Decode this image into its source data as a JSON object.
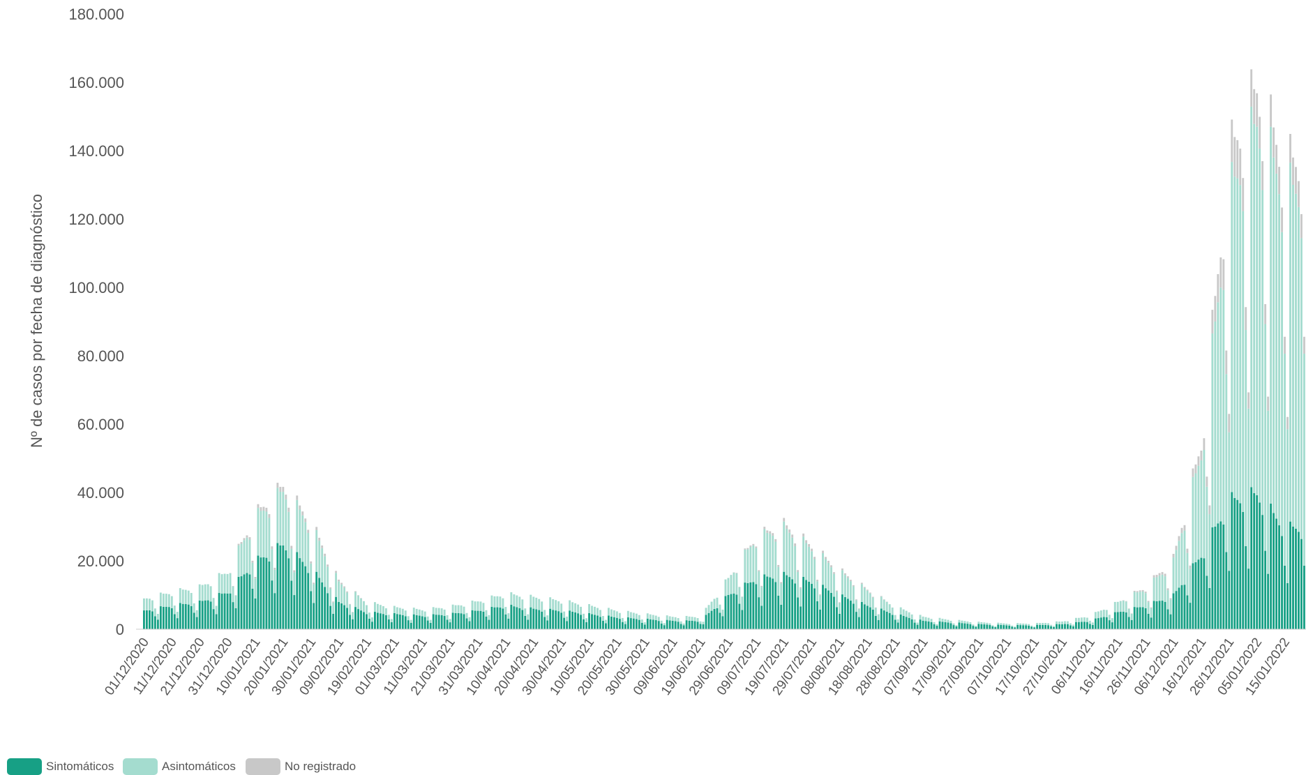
{
  "chart_data": {
    "type": "bar",
    "stacked": true,
    "ylabel": "Nº de casos por fecha de diagnóstico",
    "xlabel": "",
    "ylim": [
      0,
      180000
    ],
    "y_ticks": [
      "180.000",
      "160.000",
      "140.000",
      "120.000",
      "100.000",
      "80.000",
      "60.000",
      "40.000",
      "20.000",
      "0"
    ],
    "x_tick_labels": [
      "01/12/2020",
      "11/12/2020",
      "21/12/2020",
      "31/12/2020",
      "10/01/2021",
      "20/01/2021",
      "30/01/2021",
      "09/02/2021",
      "19/02/2021",
      "01/03/2021",
      "11/03/2021",
      "21/03/2021",
      "31/03/2021",
      "10/04/2021",
      "20/04/2021",
      "30/04/2021",
      "10/05/2021",
      "20/05/2021",
      "30/05/2021",
      "09/06/2021",
      "19/06/2021",
      "29/06/2021",
      "09/07/2021",
      "19/07/2021",
      "29/07/2021",
      "08/08/2021",
      "18/08/2021",
      "28/08/2021",
      "07/09/2021",
      "17/09/2021",
      "27/09/2021",
      "07/10/2021",
      "17/10/2021",
      "27/10/2021",
      "06/11/2021",
      "16/11/2021",
      "26/11/2021",
      "06/12/2021",
      "16/12/2021",
      "26/12/2021",
      "05/01/2022",
      "15/01/2022"
    ],
    "grid": false,
    "legend": "bottom-left",
    "colors": {
      "sintomaticos": "#17a085",
      "asintomaticos": "#a4dccf",
      "no_registrado": "#c8c8c8"
    },
    "series": [
      {
        "name": "Sintomáticos",
        "approx_values_at_ticks": [
          5500,
          7000,
          8000,
          11000,
          20000,
          25000,
          18000,
          8000,
          5000,
          4500,
          4000,
          4500,
          5500,
          7000,
          6000,
          5500,
          4500,
          3500,
          3000,
          2500,
          2500,
          10000,
          15000,
          16000,
          14000,
          10000,
          7000,
          4500,
          2500,
          2000,
          1500,
          1200,
          1200,
          1500,
          2500,
          5000,
          7000,
          10000,
          22000,
          38000,
          40000,
          30000
        ]
      },
      {
        "name": "Asintomáticos",
        "approx_values_at_ticks": [
          3500,
          4000,
          4500,
          6000,
          13000,
          16000,
          13000,
          6000,
          3000,
          2000,
          1800,
          2200,
          2800,
          3500,
          3500,
          3000,
          2500,
          2000,
          1500,
          1200,
          1200,
          5000,
          12000,
          14000,
          10000,
          7000,
          4500,
          2200,
          1200,
          800,
          600,
          500,
          500,
          800,
          1500,
          3000,
          5000,
          10000,
          30000,
          90000,
          110000,
          100000
        ]
      },
      {
        "name": "No registrado",
        "approx_values_at_ticks": [
          0,
          0,
          0,
          0,
          1000,
          1500,
          1000,
          500,
          0,
          0,
          0,
          0,
          0,
          0,
          0,
          0,
          0,
          0,
          0,
          0,
          0,
          0,
          500,
          1000,
          800,
          500,
          300,
          0,
          0,
          0,
          0,
          0,
          0,
          0,
          0,
          0,
          500,
          1000,
          3000,
          12000,
          10000,
          8000
        ]
      }
    ]
  },
  "legend": {
    "items": [
      {
        "label": "Sintomáticos",
        "color": "#17a085"
      },
      {
        "label": "Asintomáticos",
        "color": "#a4dccf"
      },
      {
        "label": "No registrado",
        "color": "#c8c8c8"
      }
    ]
  }
}
